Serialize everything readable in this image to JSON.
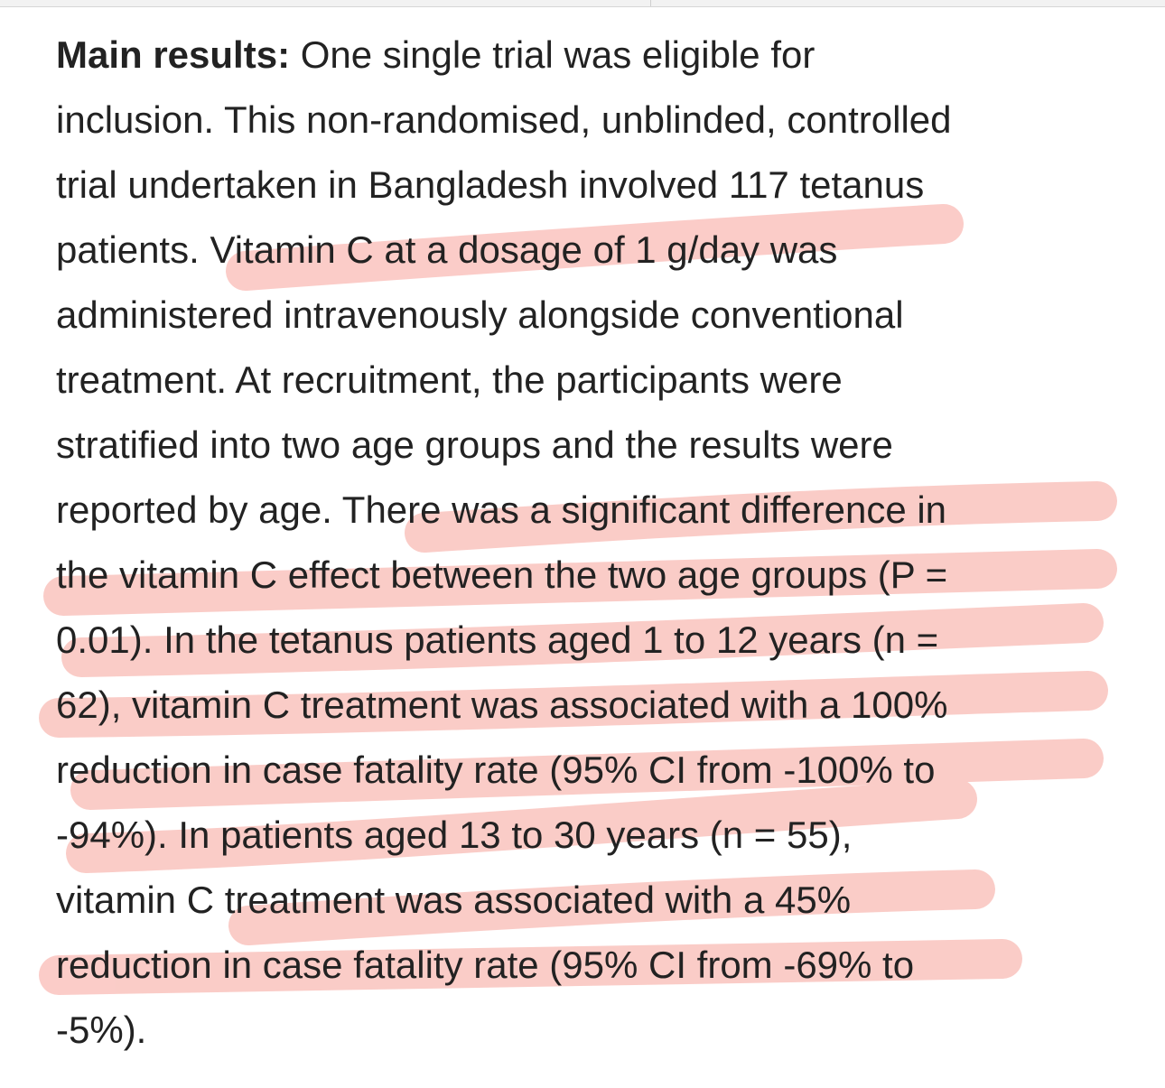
{
  "abstract": {
    "heading": "Main results:",
    "lines": [
      " One single trial was eligible for",
      "inclusion. This non-randomised, unblinded, controlled",
      "trial undertaken in Bangladesh involved 117 tetanus",
      "patients. Vitamin C at a dosage of 1 g/day was",
      "administered intravenously alongside conventional",
      "treatment. At recruitment, the participants were",
      "stratified into two age groups and the results were",
      "reported by age. There was a significant difference in",
      "the vitamin C effect between the two age groups (P =",
      "0.01). In the tetanus patients aged 1 to 12 years (n =",
      "62), vitamin C treatment was associated with a 100%",
      "reduction in case fatality rate (95% CI from -100% to",
      "-94%). In patients aged 13 to 30 years (n = 55),",
      "vitamin C treatment was associated with a 45%",
      "reduction in case fatality rate (95% CI from -69% to",
      "-5%)."
    ]
  },
  "highlight_color": "#f7a39b"
}
